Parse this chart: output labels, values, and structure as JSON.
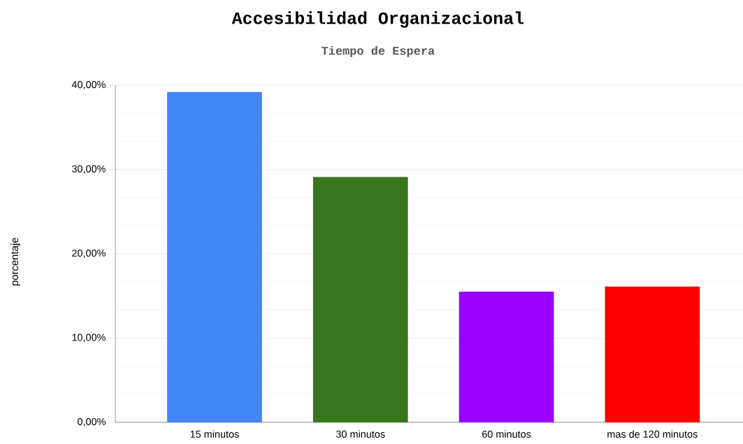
{
  "chart_data": {
    "type": "bar",
    "title": "Accesibilidad Organizacional",
    "subtitle": "Tiempo de Espera",
    "ylabel": "porcentaje",
    "categories": [
      "15 minutos",
      "30 minutos",
      "60 minutos",
      "mas de 120 minutos"
    ],
    "values": [
      39.2,
      29.1,
      15.5,
      16.1
    ],
    "colors": [
      "#4285f4",
      "#38761d",
      "#9900ff",
      "#ff0000"
    ],
    "ylim": [
      0,
      40
    ],
    "yticks": [
      {
        "value": 0,
        "label": "0,00%"
      },
      {
        "value": 10,
        "label": "10,00%"
      },
      {
        "value": 20,
        "label": "20,00%"
      },
      {
        "value": 30,
        "label": "30,00%"
      },
      {
        "value": 40,
        "label": "40,00%"
      }
    ],
    "grid": "y"
  }
}
